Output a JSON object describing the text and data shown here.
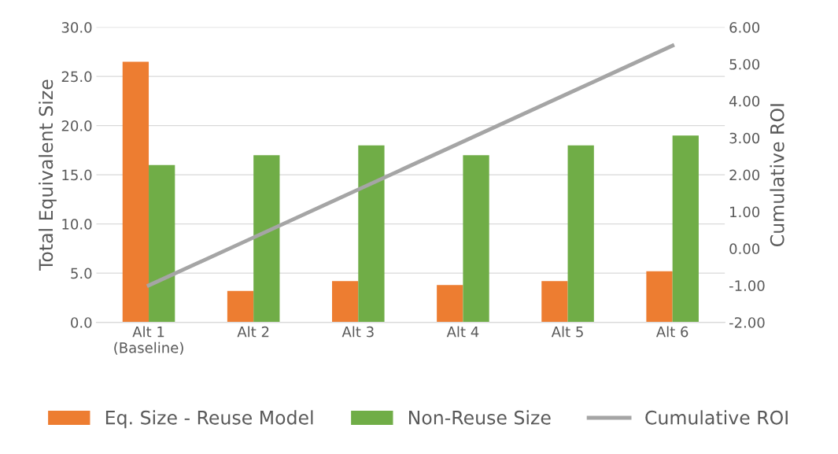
{
  "chart_data": {
    "type": "bar",
    "categories": [
      "Alt 1\n(Baseline)",
      "Alt 2",
      "Alt 3",
      "Alt 4",
      "Alt 5",
      "Alt 6"
    ],
    "ylabel": "Total Equivalent Size",
    "y2label": "Cumulative ROI",
    "series": [
      {
        "name": "Eq. Size - Reuse Model",
        "color": "#ed7d31",
        "values": [
          26.5,
          3.2,
          4.2,
          3.8,
          4.2,
          5.2
        ]
      },
      {
        "name": "Non-Reuse Size",
        "color": "#70ad47",
        "values": [
          16,
          17,
          18,
          17,
          18,
          19
        ]
      },
      {
        "name": "Cumulative ROI",
        "type": "line",
        "axis": "y2",
        "color": "#a5a5a5",
        "values": [
          -1.0,
          0.3,
          1.6,
          2.9,
          4.2,
          5.5
        ]
      }
    ],
    "ylim": [
      0,
      30
    ],
    "yticks": [
      {
        "value": 0,
        "label": "0.0"
      },
      {
        "value": 5,
        "label": "5.0"
      },
      {
        "value": 10,
        "label": "10.0"
      },
      {
        "value": 15,
        "label": "15.0"
      },
      {
        "value": 20,
        "label": "20.0"
      },
      {
        "value": 25,
        "label": "25.0"
      },
      {
        "value": 30,
        "label": "30.0"
      }
    ],
    "y2lim": [
      -2,
      6
    ],
    "y2ticks": [
      {
        "value": -2,
        "label": "-2.00"
      },
      {
        "value": -1,
        "label": "-1.00"
      },
      {
        "value": 0,
        "label": "0.00"
      },
      {
        "value": 1,
        "label": "1.00"
      },
      {
        "value": 2,
        "label": "2.00"
      },
      {
        "value": 3,
        "label": "3.00"
      },
      {
        "value": 4,
        "label": "4.00"
      },
      {
        "value": 5,
        "label": "5.00"
      },
      {
        "value": 6,
        "label": "6.00"
      }
    ],
    "grid": "y",
    "legend": "bottom"
  }
}
